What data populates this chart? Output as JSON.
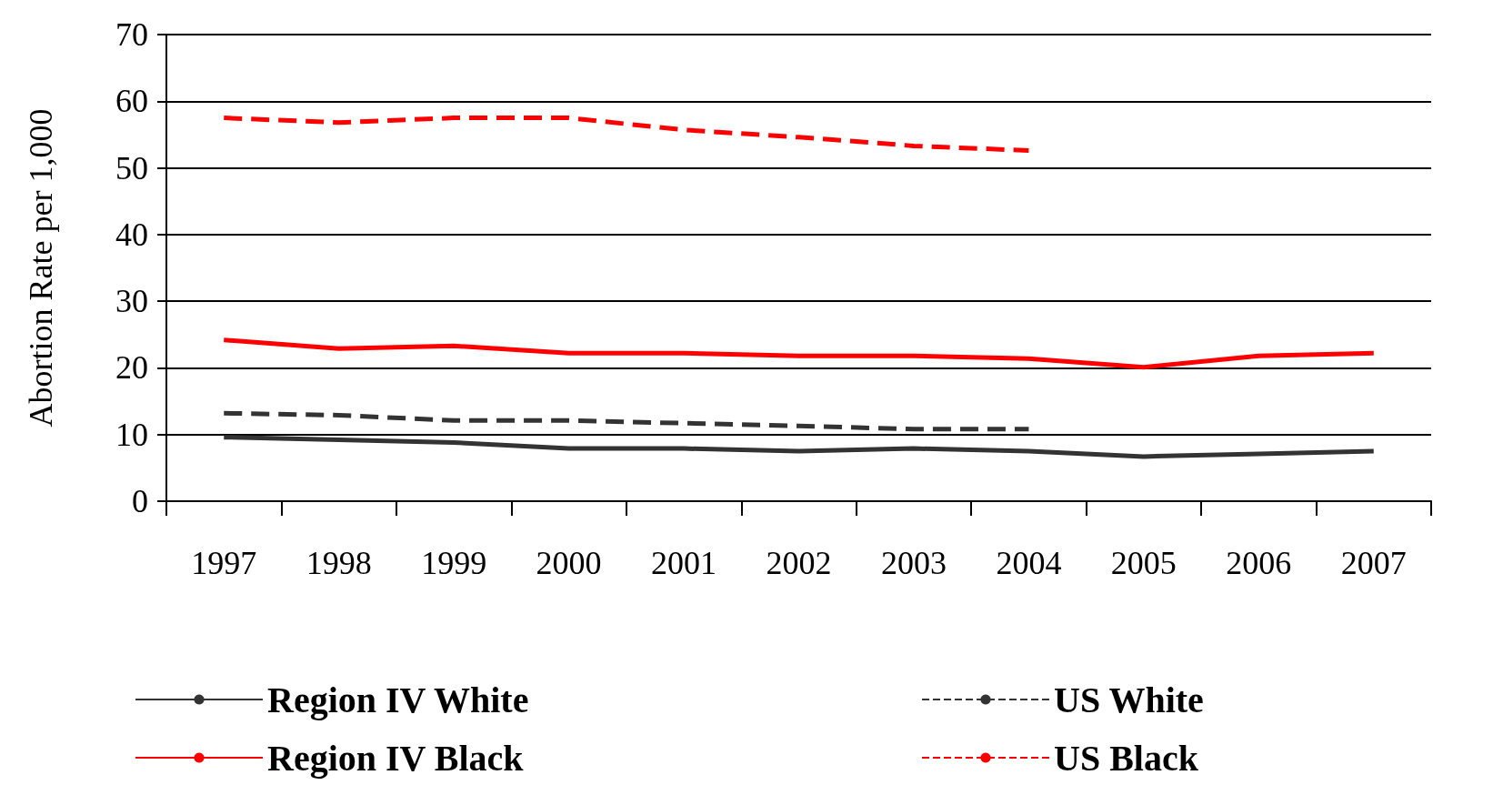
{
  "chart_data": {
    "type": "line",
    "ylabel": "Abortion Rate per 1,000",
    "categories": [
      "1997",
      "1998",
      "1999",
      "2000",
      "2001",
      "2002",
      "2003",
      "2004",
      "2005",
      "2006",
      "2007"
    ],
    "ylim": [
      0,
      70
    ],
    "yticks": [
      0,
      10,
      20,
      30,
      40,
      50,
      60,
      70
    ],
    "grid": "y",
    "legend": "bottom",
    "marker": "none",
    "series": [
      {
        "name": "Region IV White",
        "color": "#333333",
        "line_style": "solid",
        "values": [
          9.6,
          9.2,
          8.8,
          7.9,
          7.9,
          7.5,
          7.9,
          7.5,
          6.7,
          7.1,
          7.5
        ]
      },
      {
        "name": "US White",
        "color": "#333333",
        "line_style": "dashed",
        "values": [
          13.2,
          12.9,
          12.1,
          12.1,
          11.7,
          11.3,
          10.8,
          10.8,
          null,
          null,
          null
        ]
      },
      {
        "name": "Region IV Black",
        "color": "#ff0000",
        "line_style": "solid",
        "values": [
          24.2,
          22.9,
          23.3,
          22.2,
          22.2,
          21.8,
          21.8,
          21.4,
          20.1,
          21.8,
          22.2
        ]
      },
      {
        "name": "US Black",
        "color": "#ff0000",
        "line_style": "dashed",
        "values": [
          57.5,
          56.8,
          57.5,
          57.5,
          55.7,
          54.6,
          53.3,
          52.6,
          null,
          null,
          null
        ]
      }
    ]
  }
}
